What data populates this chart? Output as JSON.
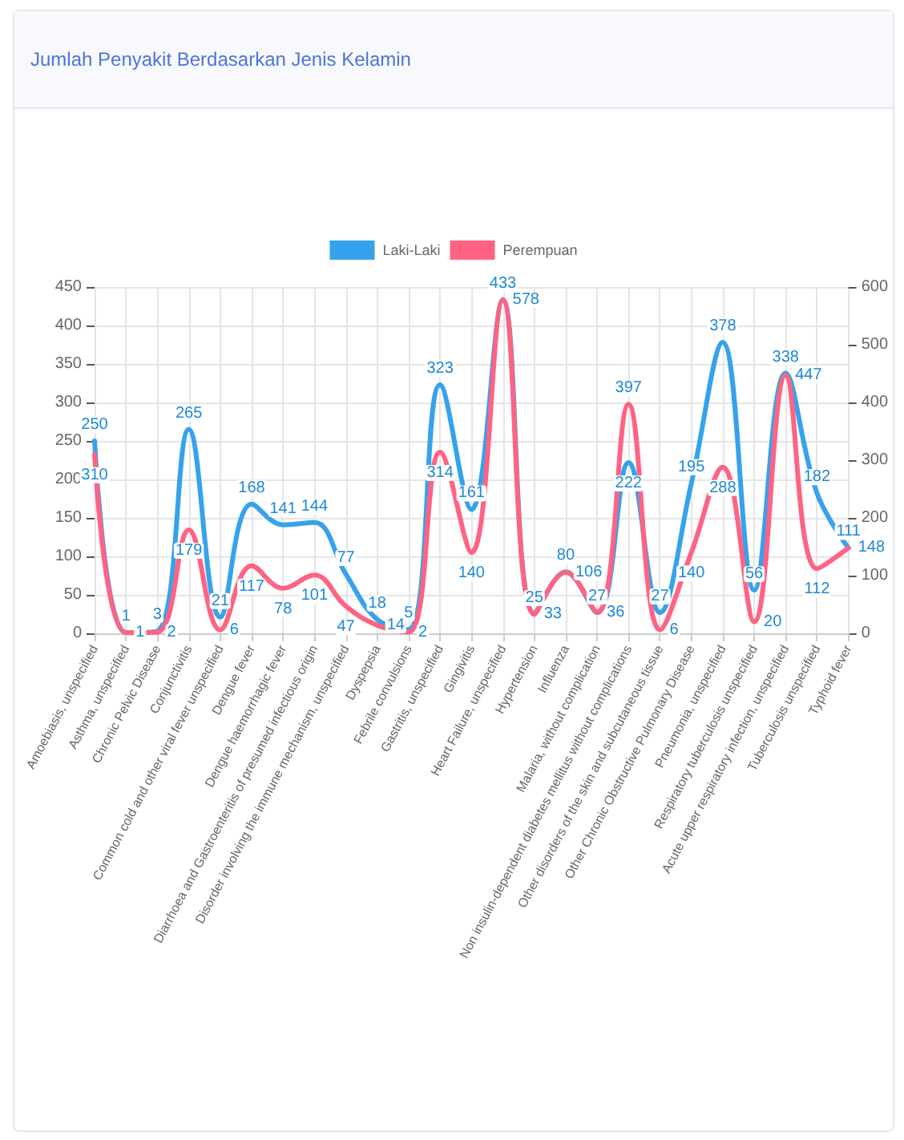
{
  "chart_data": {
    "type": "line",
    "title": "Jumlah Penyakit Berdasarkan Jenis Kelamin",
    "categories": [
      "Amoebiasis, unspecified",
      "Asthma, unspecified",
      "Chronic Pelvic Disease",
      "Conjunctivitis",
      "Common cold and other viral fever unspecified",
      "Dengue fever",
      "Dengue haemorrhagic fever",
      "Diarrhoea and Gastroenteritis of presumed infectious origin",
      "Disorder involving the immune mechanism, unspecified",
      "Dyspepsia",
      "Febrile convulsions",
      "Gastritis, unspecified",
      "Gingivitis",
      "Heart Failure, unspecified",
      "Hypertension",
      "Influenza",
      "Malaria, without complication",
      "Non insulin-dependent diabetes mellitus without complications",
      "Other disorders of the skin and subcutaneous tissue",
      "Other Chronic Obstructive Pulmonary Disease",
      "Pneumonia, unspecified",
      "Respiratory tuberculosis unspecified",
      "Acute upper respiratory infection, unspecified",
      "Tuberculosis unspecified",
      "Typhoid fever"
    ],
    "series": [
      {
        "name": "Laki-Laki",
        "color": "#36a2eb",
        "values": [
          250,
          1,
          3,
          265,
          21,
          168,
          141,
          144,
          77,
          18,
          5,
          323,
          161,
          433,
          25,
          80,
          27,
          222,
          27,
          195,
          378,
          56,
          338,
          182,
          111
        ]
      },
      {
        "name": "Perempuan",
        "color": "#ff6384",
        "axis": "y2",
        "values": [
          310,
          1,
          2,
          179,
          6,
          117,
          78,
          101,
          47,
          14,
          2,
          314,
          140,
          578,
          33,
          106,
          36,
          397,
          6,
          140,
          288,
          20,
          447,
          112,
          148
        ]
      }
    ],
    "ylim": [
      0,
      450
    ],
    "yticks": [
      0,
      50,
      100,
      150,
      200,
      250,
      300,
      350,
      400,
      450
    ],
    "y2lim": [
      0,
      600
    ],
    "y2ticks": [
      0,
      100,
      200,
      300,
      400,
      500,
      600
    ],
    "grid": true,
    "legend": "top",
    "marker": "none",
    "line_style": "solid",
    "data_labels": true
  }
}
